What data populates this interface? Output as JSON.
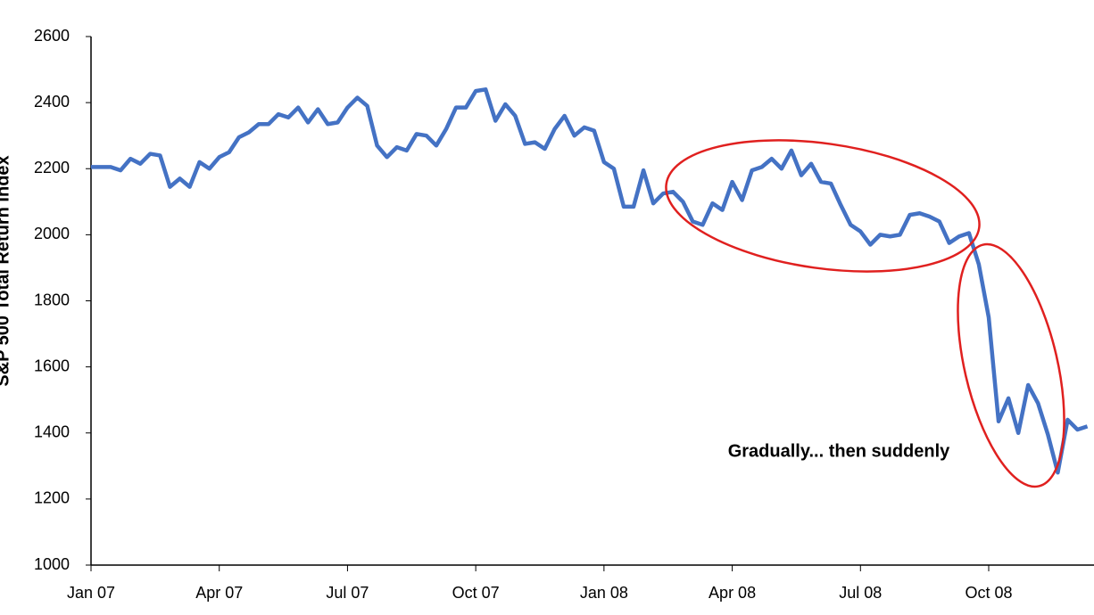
{
  "chart_data": {
    "type": "line",
    "y_label": "S&P 500 Total Return Index",
    "annotation": "Gradually... then suddenly",
    "categories": [
      "Jan 07",
      null,
      null,
      null,
      null,
      null,
      null,
      null,
      null,
      null,
      null,
      null,
      null,
      "Apr 07",
      null,
      null,
      null,
      null,
      null,
      null,
      null,
      null,
      null,
      null,
      null,
      null,
      "Jul 07",
      null,
      null,
      null,
      null,
      null,
      null,
      null,
      null,
      null,
      null,
      null,
      null,
      "Oct 07",
      null,
      null,
      null,
      null,
      null,
      null,
      null,
      null,
      null,
      null,
      null,
      null,
      "Jan 08",
      null,
      null,
      null,
      null,
      null,
      null,
      null,
      null,
      null,
      null,
      null,
      null,
      "Apr 08",
      null,
      null,
      null,
      null,
      null,
      null,
      null,
      null,
      null,
      null,
      null,
      null,
      "Jul 08",
      null,
      null,
      null,
      null,
      null,
      null,
      null,
      null,
      null,
      null,
      null,
      null,
      "Oct 08",
      null,
      null,
      null,
      null,
      null,
      null,
      null,
      null,
      null,
      null
    ],
    "values": [
      2205,
      2205,
      2205,
      2195,
      2230,
      2215,
      2245,
      2240,
      2145,
      2170,
      2145,
      2220,
      2200,
      2235,
      2250,
      2295,
      2310,
      2335,
      2335,
      2365,
      2355,
      2385,
      2340,
      2380,
      2335,
      2340,
      2385,
      2415,
      2390,
      2270,
      2235,
      2265,
      2255,
      2305,
      2300,
      2270,
      2320,
      2385,
      2385,
      2435,
      2440,
      2345,
      2395,
      2360,
      2275,
      2280,
      2260,
      2320,
      2360,
      2300,
      2325,
      2315,
      2220,
      2200,
      2085,
      2085,
      2195,
      2095,
      2125,
      2130,
      2100,
      2040,
      2030,
      2095,
      2075,
      2160,
      2105,
      2195,
      2205,
      2230,
      2200,
      2255,
      2180,
      2215,
      2160,
      2155,
      2090,
      2030,
      2010,
      1970,
      2000,
      1995,
      2000,
      2060,
      2065,
      2055,
      2040,
      1975,
      1995,
      2005,
      1910,
      1750,
      1435,
      1505,
      1400,
      1545,
      1490,
      1395,
      1280,
      1440,
      1410,
      1420
    ],
    "color": "#4472c4",
    "ylim": [
      1000,
      2600
    ],
    "yticks": [
      1000,
      1200,
      1400,
      1600,
      1800,
      2000,
      2200,
      2400,
      2600
    ],
    "grid": false
  }
}
